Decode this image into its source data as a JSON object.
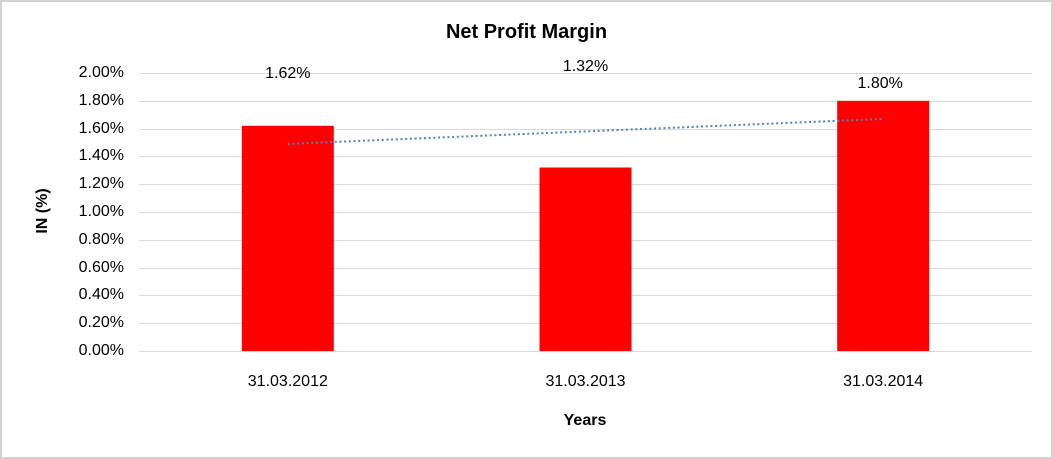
{
  "chart_data": {
    "type": "bar",
    "title": "Net Profit Margin",
    "xlabel": "Years",
    "ylabel": "IN (%)",
    "categories": [
      "31.03.2012",
      "31.03.2013",
      "31.03.2014"
    ],
    "values": [
      1.62,
      1.32,
      1.8
    ],
    "data_labels": [
      "1.62%",
      "1.32%",
      "1.80%"
    ],
    "ylim": [
      0,
      2.0
    ],
    "ytick_step": 0.2,
    "ytick_labels": [
      "0.00%",
      "0.20%",
      "0.40%",
      "0.60%",
      "0.80%",
      "1.00%",
      "1.20%",
      "1.40%",
      "1.60%",
      "1.80%",
      "2.00%"
    ],
    "grid": true,
    "legend": "none",
    "bar_color": "#ff0000",
    "gridline_color": "#d9d9d9",
    "trendline": {
      "type": "linear",
      "style": "dotted",
      "color": "#4f81bd",
      "start_value": 1.49,
      "end_value": 1.67
    }
  }
}
